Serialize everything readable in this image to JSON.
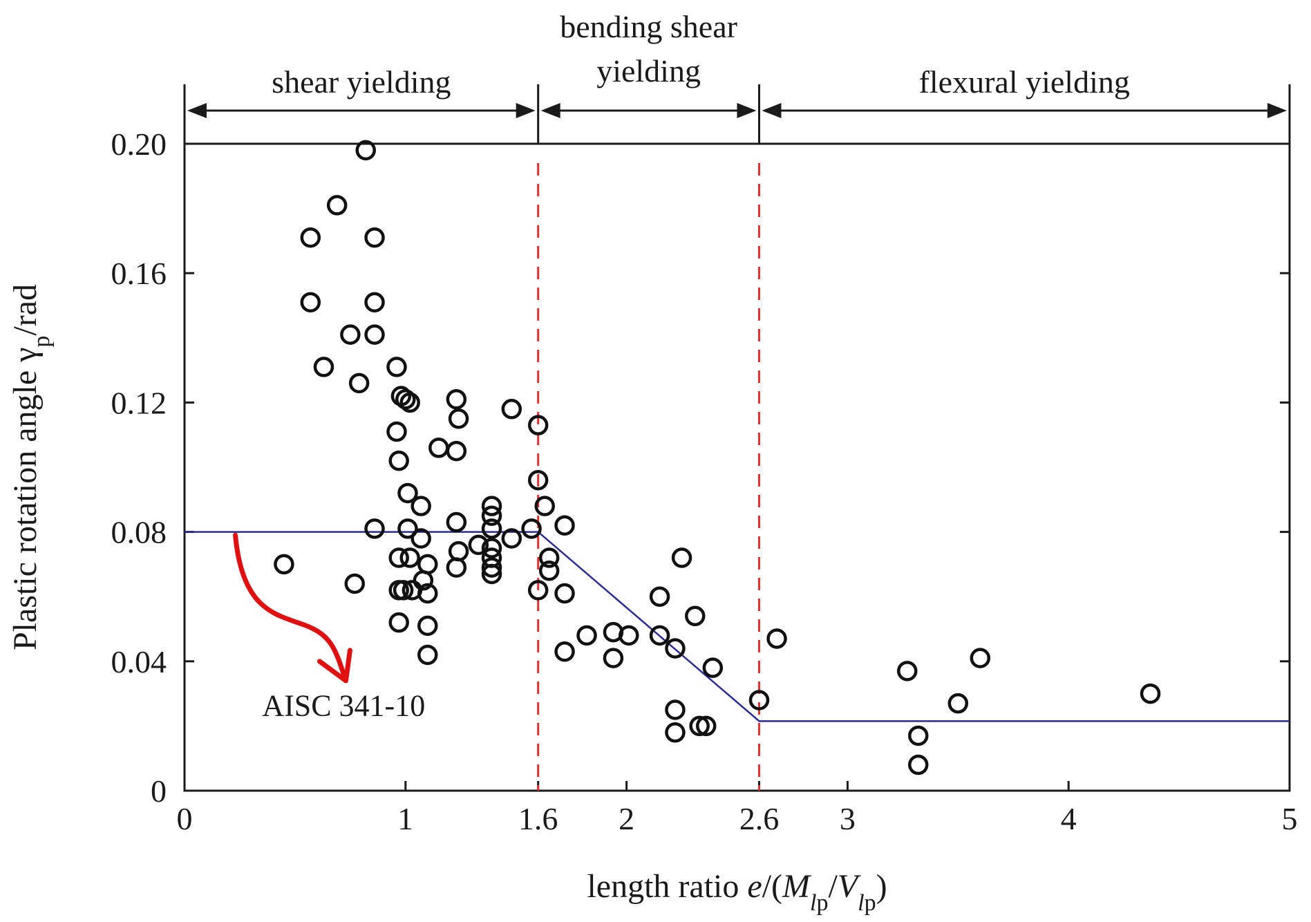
{
  "chart_data": {
    "type": "scatter",
    "xlabel": "length ratio e/(Mlp/Vlp)",
    "ylabel": "Plastic rotation angle γp/rad",
    "xlim": [
      0,
      5
    ],
    "ylim": [
      0,
      0.2
    ],
    "x_ticks": [
      {
        "value": 0,
        "label": "0"
      },
      {
        "value": 1,
        "label": "1"
      },
      {
        "value": 1.6,
        "label": "1.6"
      },
      {
        "value": 2,
        "label": "2"
      },
      {
        "value": 2.6,
        "label": "2.6"
      },
      {
        "value": 3,
        "label": "3"
      },
      {
        "value": 4,
        "label": "4"
      },
      {
        "value": 5,
        "label": "5"
      }
    ],
    "y_ticks": [
      {
        "value": 0,
        "label": "0"
      },
      {
        "value": 0.04,
        "label": "0.04"
      },
      {
        "value": 0.08,
        "label": "0.08"
      },
      {
        "value": 0.12,
        "label": "0.12"
      },
      {
        "value": 0.16,
        "label": "0.16"
      },
      {
        "value": 0.2,
        "label": "0.20"
      }
    ],
    "grid": false,
    "regions": [
      {
        "label_lines": [
          "shear yielding"
        ],
        "x_start": 0,
        "x_end": 1.6
      },
      {
        "label_lines": [
          "bending shear",
          "yielding"
        ],
        "x_start": 1.6,
        "x_end": 2.6
      },
      {
        "label_lines": [
          "flexural yielding"
        ],
        "x_start": 2.6,
        "x_end": 5
      }
    ],
    "boundaries": [
      {
        "x": 1.6,
        "color": "#e53030",
        "style": "dashed"
      },
      {
        "x": 2.6,
        "color": "#e53030",
        "style": "dashed"
      }
    ],
    "limit_curve": {
      "label": "AISC 341-10",
      "color": "#2a2a9a",
      "points": [
        [
          0,
          0.08
        ],
        [
          1.6,
          0.08
        ],
        [
          2.6,
          0.0215
        ],
        [
          5,
          0.0215
        ]
      ]
    },
    "annotation": {
      "text": "AISC 341-10",
      "x": 0.72,
      "y": 0.021,
      "arrow_color": "#e01010",
      "arrow_from": [
        0.23,
        0.079
      ],
      "arrow_to": [
        0.73,
        0.034
      ]
    },
    "points": [
      [
        0.45,
        0.07
      ],
      [
        0.57,
        0.171
      ],
      [
        0.57,
        0.151
      ],
      [
        0.63,
        0.131
      ],
      [
        0.69,
        0.181
      ],
      [
        0.75,
        0.141
      ],
      [
        0.77,
        0.064
      ],
      [
        0.79,
        0.126
      ],
      [
        0.82,
        0.198
      ],
      [
        0.86,
        0.171
      ],
      [
        0.86,
        0.151
      ],
      [
        0.86,
        0.141
      ],
      [
        0.86,
        0.081
      ],
      [
        0.96,
        0.131
      ],
      [
        0.96,
        0.111
      ],
      [
        0.97,
        0.102
      ],
      [
        0.98,
        0.122
      ],
      [
        1.0,
        0.121
      ],
      [
        1.02,
        0.12
      ],
      [
        1.01,
        0.092
      ],
      [
        0.97,
        0.072
      ],
      [
        0.97,
        0.062
      ],
      [
        0.99,
        0.062
      ],
      [
        0.97,
        0.052
      ],
      [
        1.01,
        0.081
      ],
      [
        1.02,
        0.072
      ],
      [
        1.03,
        0.062
      ],
      [
        1.07,
        0.088
      ],
      [
        1.07,
        0.078
      ],
      [
        1.08,
        0.065
      ],
      [
        1.1,
        0.07
      ],
      [
        1.1,
        0.061
      ],
      [
        1.1,
        0.051
      ],
      [
        1.1,
        0.042
      ],
      [
        1.15,
        0.106
      ],
      [
        1.23,
        0.121
      ],
      [
        1.24,
        0.115
      ],
      [
        1.23,
        0.105
      ],
      [
        1.23,
        0.083
      ],
      [
        1.24,
        0.074
      ],
      [
        1.23,
        0.069
      ],
      [
        1.33,
        0.076
      ],
      [
        1.39,
        0.088
      ],
      [
        1.39,
        0.085
      ],
      [
        1.39,
        0.081
      ],
      [
        1.39,
        0.075
      ],
      [
        1.39,
        0.072
      ],
      [
        1.39,
        0.069
      ],
      [
        1.39,
        0.067
      ],
      [
        1.48,
        0.118
      ],
      [
        1.48,
        0.078
      ],
      [
        1.57,
        0.081
      ],
      [
        1.6,
        0.113
      ],
      [
        1.6,
        0.096
      ],
      [
        1.6,
        0.062
      ],
      [
        1.63,
        0.088
      ],
      [
        1.65,
        0.072
      ],
      [
        1.65,
        0.068
      ],
      [
        1.72,
        0.082
      ],
      [
        1.72,
        0.061
      ],
      [
        1.72,
        0.043
      ],
      [
        1.82,
        0.048
      ],
      [
        1.94,
        0.049
      ],
      [
        1.94,
        0.041
      ],
      [
        2.01,
        0.048
      ],
      [
        2.15,
        0.06
      ],
      [
        2.15,
        0.048
      ],
      [
        2.22,
        0.044
      ],
      [
        2.22,
        0.025
      ],
      [
        2.22,
        0.018
      ],
      [
        2.25,
        0.072
      ],
      [
        2.31,
        0.054
      ],
      [
        2.33,
        0.02
      ],
      [
        2.36,
        0.02
      ],
      [
        2.39,
        0.038
      ],
      [
        2.6,
        0.028
      ],
      [
        2.68,
        0.047
      ],
      [
        3.27,
        0.037
      ],
      [
        3.32,
        0.017
      ],
      [
        3.32,
        0.008
      ],
      [
        3.5,
        0.027
      ],
      [
        3.6,
        0.041
      ],
      [
        4.37,
        0.03
      ]
    ]
  }
}
